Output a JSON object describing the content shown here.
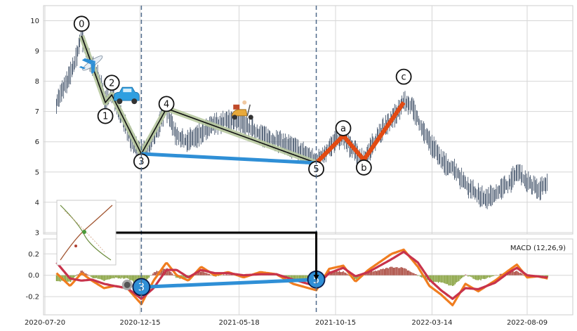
{
  "chart_data": [
    {
      "type": "line",
      "title": "",
      "xlabel": "",
      "ylabel": "",
      "ylim": [
        2.95,
        10.5
      ],
      "grid": true,
      "yticks": [
        "3",
        "4",
        "5",
        "6",
        "7",
        "8",
        "9",
        "10"
      ],
      "x_ticks": [
        "2020-07-20",
        "2020-12-15",
        "2021-05-18",
        "2021-10-15",
        "2022-03-14",
        "2022-08-09"
      ],
      "series": [
        {
          "role": "price",
          "color": "#4a5a70",
          "points": [
            [
              "2020-08-07",
              7.3
            ],
            [
              "2020-08-22",
              7.9
            ],
            [
              "2020-09-05",
              8.6
            ],
            [
              "2020-09-15",
              9.5
            ],
            [
              "2020-09-29",
              8.6
            ],
            [
              "2020-10-13",
              8.1
            ],
            [
              "2020-10-22",
              7.3
            ],
            [
              "2020-11-01",
              7.55
            ],
            [
              "2020-11-09",
              7.3
            ],
            [
              "2020-11-20",
              6.7
            ],
            [
              "2020-12-03",
              6.0
            ],
            [
              "2020-12-17",
              5.6
            ],
            [
              "2020-12-28",
              5.8
            ],
            [
              "2021-01-11",
              6.4
            ],
            [
              "2021-01-25",
              7.1
            ],
            [
              "2021-02-08",
              6.3
            ],
            [
              "2021-02-22",
              6.0
            ],
            [
              "2021-03-15",
              6.2
            ],
            [
              "2021-04-12",
              6.6
            ],
            [
              "2021-05-10",
              6.7
            ],
            [
              "2021-06-07",
              6.4
            ],
            [
              "2021-07-05",
              6.1
            ],
            [
              "2021-08-02",
              5.9
            ],
            [
              "2021-08-30",
              5.6
            ],
            [
              "2021-09-15",
              5.3
            ],
            [
              "2021-10-01",
              5.7
            ],
            [
              "2021-10-15",
              6.0
            ],
            [
              "2021-10-27",
              6.2
            ],
            [
              "2021-11-08",
              5.8
            ],
            [
              "2021-11-28",
              5.4
            ],
            [
              "2021-12-20",
              6.2
            ],
            [
              "2022-01-10",
              6.7
            ],
            [
              "2022-01-29",
              7.3
            ],
            [
              "2022-02-10",
              7.2
            ],
            [
              "2022-02-28",
              6.4
            ],
            [
              "2022-03-14",
              5.9
            ],
            [
              "2022-04-01",
              5.3
            ],
            [
              "2022-04-18",
              5.1
            ],
            [
              "2022-05-02",
              4.7
            ],
            [
              "2022-05-20",
              4.3
            ],
            [
              "2022-06-07",
              4.1
            ],
            [
              "2022-06-27",
              4.4
            ],
            [
              "2022-07-12",
              4.6
            ],
            [
              "2022-07-24",
              5.0
            ],
            [
              "2022-08-09",
              4.7
            ],
            [
              "2022-08-25",
              4.4
            ],
            [
              "2022-09-10",
              4.6
            ]
          ]
        }
      ],
      "wave_labels": [
        {
          "label": "0",
          "date": "2020-09-15",
          "value": 9.5,
          "label_value": 9.9
        },
        {
          "label": "1",
          "date": "2020-10-22",
          "value": 7.3,
          "label_value": 6.85
        },
        {
          "label": "2",
          "date": "2020-11-01",
          "value": 7.55,
          "label_value": 7.95
        },
        {
          "label": "3",
          "date": "2020-12-17",
          "value": 5.6,
          "label_value": 5.35
        },
        {
          "label": "4",
          "date": "2021-01-25",
          "value": 7.1,
          "label_value": 7.25
        },
        {
          "label": "5",
          "date": "2021-09-15",
          "value": 5.3,
          "label_value": 5.1
        },
        {
          "label": "a",
          "date": "2021-10-27",
          "value": 6.2,
          "label_value": 6.45
        },
        {
          "label": "b",
          "date": "2021-11-28",
          "value": 5.4,
          "label_value": 5.15
        },
        {
          "label": "c",
          "date": "2022-01-29",
          "value": 7.3,
          "label_value": 8.15
        }
      ],
      "impulse_line": {
        "color": "#111111",
        "glow": "#b8c9a0",
        "points": [
          "0",
          "1",
          "2",
          "3",
          "4",
          "5"
        ]
      },
      "correction_line": {
        "color": "#e24a12",
        "points": [
          "5",
          "a",
          "b",
          "c"
        ]
      },
      "divergence_line": {
        "color": "#2f8fd6",
        "from": "3",
        "to": "5"
      },
      "vertical_markers": [
        "2020-12-17",
        "2021-09-15"
      ],
      "icons": [
        "airplane-icon",
        "car-icon",
        "scooter-icon"
      ]
    },
    {
      "type": "bar",
      "legend": "MACD (12,26,9)",
      "legend_position": "top-right",
      "ylim": [
        -0.37,
        0.34
      ],
      "yticks": [
        "0.2",
        "0.0",
        "-0.2"
      ],
      "grid": true,
      "histogram_colors": {
        "positive": "#a33a2e",
        "negative": "#7d9a2e"
      },
      "macd_line_color": "#f07d1f",
      "signal_line_color": "#c8334b",
      "macd": [
        [
          "2020-08-07",
          0.02
        ],
        [
          "2020-08-28",
          -0.1
        ],
        [
          "2020-09-15",
          0.02
        ],
        [
          "2020-10-01",
          -0.05
        ],
        [
          "2020-10-20",
          -0.12
        ],
        [
          "2020-11-05",
          -0.1
        ],
        [
          "2020-11-25",
          -0.12
        ],
        [
          "2020-12-17",
          -0.27
        ],
        [
          "2021-01-05",
          -0.05
        ],
        [
          "2021-01-25",
          0.12
        ],
        [
          "2021-02-10",
          0.0
        ],
        [
          "2021-02-28",
          -0.05
        ],
        [
          "2021-03-20",
          0.08
        ],
        [
          "2021-04-10",
          0.0
        ],
        [
          "2021-05-01",
          0.03
        ],
        [
          "2021-05-25",
          -0.02
        ],
        [
          "2021-06-20",
          0.03
        ],
        [
          "2021-07-15",
          0.01
        ],
        [
          "2021-08-10",
          -0.08
        ],
        [
          "2021-09-15",
          -0.14
        ],
        [
          "2021-10-05",
          0.06
        ],
        [
          "2021-10-27",
          0.09
        ],
        [
          "2021-11-15",
          -0.06
        ],
        [
          "2021-12-05",
          0.05
        ],
        [
          "2022-01-10",
          0.2
        ],
        [
          "2022-01-29",
          0.24
        ],
        [
          "2022-02-20",
          0.08
        ],
        [
          "2022-03-10",
          -0.1
        ],
        [
          "2022-03-28",
          -0.18
        ],
        [
          "2022-04-15",
          -0.28
        ],
        [
          "2022-05-05",
          -0.08
        ],
        [
          "2022-05-25",
          -0.15
        ],
        [
          "2022-06-20",
          -0.05
        ],
        [
          "2022-07-10",
          0.04
        ],
        [
          "2022-07-24",
          0.1
        ],
        [
          "2022-08-09",
          -0.02
        ],
        [
          "2022-08-25",
          -0.01
        ],
        [
          "2022-09-10",
          -0.03
        ]
      ],
      "signal": [
        [
          "2020-08-07",
          0.12
        ],
        [
          "2020-08-28",
          -0.03
        ],
        [
          "2020-09-15",
          -0.05
        ],
        [
          "2020-10-01",
          -0.04
        ],
        [
          "2020-10-20",
          -0.08
        ],
        [
          "2020-11-05",
          -0.1
        ],
        [
          "2020-11-25",
          -0.12
        ],
        [
          "2020-12-17",
          -0.22
        ],
        [
          "2021-01-05",
          -0.12
        ],
        [
          "2021-01-25",
          0.05
        ],
        [
          "2021-02-10",
          0.05
        ],
        [
          "2021-02-28",
          -0.02
        ],
        [
          "2021-03-20",
          0.05
        ],
        [
          "2021-04-10",
          0.02
        ],
        [
          "2021-05-01",
          0.02
        ],
        [
          "2021-05-25",
          0.0
        ],
        [
          "2021-06-20",
          0.01
        ],
        [
          "2021-07-15",
          0.01
        ],
        [
          "2021-08-10",
          -0.04
        ],
        [
          "2021-09-15",
          -0.1
        ],
        [
          "2021-10-05",
          0.02
        ],
        [
          "2021-10-27",
          0.07
        ],
        [
          "2021-11-15",
          -0.01
        ],
        [
          "2021-12-05",
          0.03
        ],
        [
          "2022-01-10",
          0.15
        ],
        [
          "2022-01-29",
          0.22
        ],
        [
          "2022-02-20",
          0.12
        ],
        [
          "2022-03-10",
          -0.04
        ],
        [
          "2022-03-28",
          -0.14
        ],
        [
          "2022-04-15",
          -0.22
        ],
        [
          "2022-05-05",
          -0.12
        ],
        [
          "2022-05-25",
          -0.13
        ],
        [
          "2022-06-20",
          -0.07
        ],
        [
          "2022-07-10",
          0.02
        ],
        [
          "2022-07-24",
          0.07
        ],
        [
          "2022-08-09",
          0.0
        ],
        [
          "2022-08-25",
          -0.01
        ],
        [
          "2022-09-10",
          -0.02
        ]
      ],
      "divergence_markers": [
        {
          "label": "",
          "date": "2020-11-25",
          "value": -0.09,
          "color": "#777777"
        },
        {
          "label": "3",
          "date": "2020-12-17",
          "value": -0.11,
          "color": "#2f8fd6"
        },
        {
          "label": "5",
          "date": "2021-09-15",
          "value": -0.04,
          "color": "#2f8fd6"
        }
      ],
      "link_line_color": "#000000"
    }
  ]
}
